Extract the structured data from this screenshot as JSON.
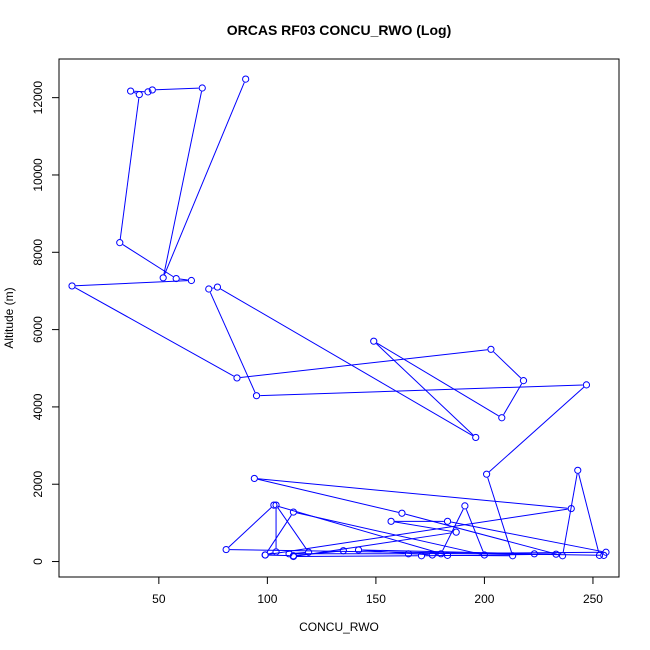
{
  "chart_data": {
    "type": "line",
    "title": "ORCAS RF03 CONCU_RWO (Log)",
    "xlabel": "CONCU_RWO",
    "ylabel": "Altitude (m)",
    "xlim": [
      4,
      262
    ],
    "ylim": [
      -400,
      13000
    ],
    "x_ticks": [
      50,
      100,
      150,
      200,
      250
    ],
    "y_ticks": [
      0,
      2000,
      4000,
      6000,
      8000,
      10000,
      12000
    ],
    "y_tick_labels": [
      "0",
      "2000",
      "4000",
      "6000",
      "8000",
      "10000",
      "12000"
    ],
    "grid": false,
    "legend": "none",
    "series_color": "#0000ff",
    "markers": "open-circle",
    "series": [
      {
        "name": "",
        "x": [
          90,
          52,
          70,
          47,
          45,
          37,
          41,
          32,
          58,
          65,
          10,
          86,
          203,
          218,
          208,
          149,
          196,
          77,
          73,
          95,
          247,
          201,
          213,
          183,
          103,
          81,
          255,
          253,
          243,
          236,
          162,
          94,
          240,
          99,
          112,
          200,
          191,
          180,
          176,
          142,
          223,
          233,
          171,
          112,
          187,
          157,
          183,
          256,
          165,
          110,
          119,
          104,
          104,
          99,
          112,
          135
        ],
        "y": [
          12480,
          7340,
          12250,
          12200,
          12150,
          12170,
          12080,
          8250,
          7320,
          7270,
          7130,
          4750,
          5490,
          4680,
          3720,
          5700,
          3210,
          7100,
          7050,
          4290,
          4570,
          2260,
          150,
          160,
          1460,
          310,
          160,
          160,
          2360,
          150,
          1250,
          2150,
          1370,
          170,
          1280,
          170,
          1440,
          200,
          170,
          300,
          200,
          190,
          150,
          130,
          760,
          1040,
          1040,
          240,
          200,
          200,
          240,
          1460,
          250,
          170,
          150,
          280
        ]
      }
    ]
  }
}
